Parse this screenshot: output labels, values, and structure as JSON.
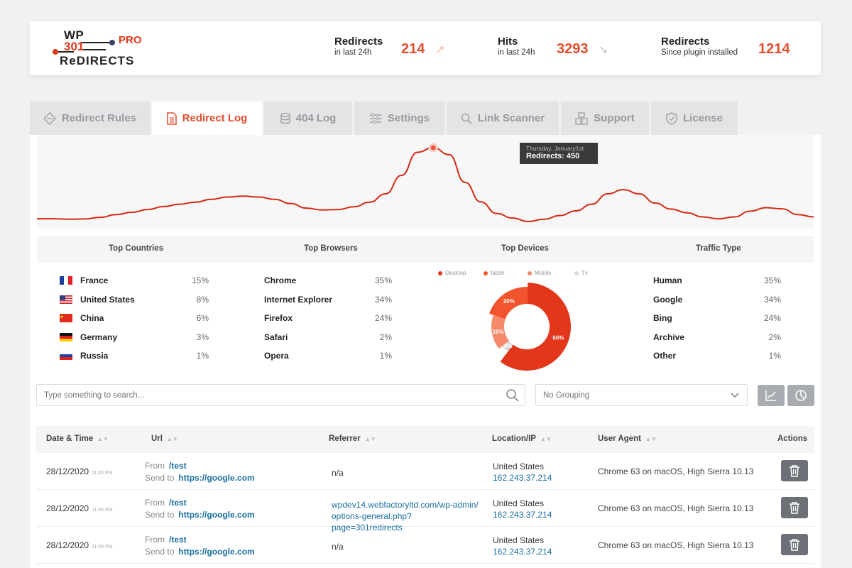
{
  "logo": {
    "wp": "WP",
    "n301": "301",
    "redirects": "ReDIRECTS",
    "pro": "PRO"
  },
  "stats": [
    {
      "label": "Redirects",
      "sub": "in last 24h",
      "value": "214",
      "trend": "up"
    },
    {
      "label": "Hits",
      "sub": "in last 24h",
      "value": "3293",
      "trend": "down"
    },
    {
      "label": "Redirects",
      "sub": "Since plugin installed",
      "value": "1214"
    }
  ],
  "tabs": [
    {
      "label": "Redirect Rules",
      "icon": "diamond-arrows-icon",
      "active": false
    },
    {
      "label": "Redirect Log",
      "icon": "document-icon",
      "active": true
    },
    {
      "label": "404 Log",
      "icon": "database-icon",
      "active": false
    },
    {
      "label": "Settings",
      "icon": "sliders-icon",
      "active": false
    },
    {
      "label": "Link Scanner",
      "icon": "search-icon",
      "active": false
    },
    {
      "label": "Support",
      "icon": "support-icon",
      "active": false
    },
    {
      "label": "License",
      "icon": "shield-icon",
      "active": false
    }
  ],
  "tooltip": {
    "date": "Thursday, January1st",
    "value": "Redirects: 450"
  },
  "chart_data": {
    "type": "area",
    "series": [
      {
        "values": [
          142,
          142,
          140,
          141,
          148,
          160,
          170,
          182,
          195,
          205,
          214,
          226,
          236,
          240,
          236,
          226,
          208,
          188,
          180,
          182,
          194,
          214,
          250,
          330,
          430,
          450,
          420,
          300,
          215,
          165,
          145,
          130,
          140,
          156,
          176,
          205,
          250,
          268,
          250,
          210,
          184,
          168,
          150,
          142,
          150,
          175,
          190,
          185,
          160,
          150
        ]
      }
    ],
    "highlight": {
      "label": "Thursday, January1st",
      "value": 450
    },
    "colors": {
      "line": "#d42a12",
      "fill": "#f7f7f8"
    }
  },
  "sections": {
    "countries": "Top Countries",
    "browsers": "Top Browsers",
    "devices": "Top Devices",
    "traffic": "Traffic Type"
  },
  "countries": [
    {
      "name": "France",
      "pct": "15%",
      "flag": "france-flag-icon"
    },
    {
      "name": "United States",
      "pct": "8%",
      "flag": "usa-flag-icon"
    },
    {
      "name": "China",
      "pct": "6%",
      "flag": "china-flag-icon"
    },
    {
      "name": "Germany",
      "pct": "3%",
      "flag": "germany-flag-icon"
    },
    {
      "name": "Russia",
      "pct": "1%",
      "flag": "russia-flag-icon"
    }
  ],
  "browsers": [
    {
      "name": "Chrome",
      "pct": "35%"
    },
    {
      "name": "Internet Explorer",
      "pct": "34%"
    },
    {
      "name": "Firefox",
      "pct": "24%"
    },
    {
      "name": "Safari",
      "pct": "2%"
    },
    {
      "name": "Opera",
      "pct": "1%"
    }
  ],
  "devices": {
    "legend": [
      {
        "label": "Desktop",
        "color": "#e2371a"
      },
      {
        "label": "tablet",
        "color": "#f2542d"
      },
      {
        "label": "Mobile",
        "color": "#f58a6c"
      },
      {
        "label": "Tv",
        "color": "#d9d9dc"
      }
    ],
    "slices": [
      {
        "label": "60%",
        "value": 60,
        "color": "#e2371a"
      },
      {
        "label": "4%",
        "value": 4,
        "color": "#d9d9dc"
      },
      {
        "label": "16%",
        "value": 16,
        "color": "#f58a6c"
      },
      {
        "label": "20%",
        "value": 20,
        "color": "#f2542d"
      }
    ]
  },
  "traffic": [
    {
      "name": "Human",
      "pct": "35%"
    },
    {
      "name": "Google",
      "pct": "34%"
    },
    {
      "name": "Bing",
      "pct": "24%"
    },
    {
      "name": "Archive",
      "pct": "2%"
    },
    {
      "name": "Other",
      "pct": "1%"
    }
  ],
  "search": {
    "placeholder": "Type something to search..."
  },
  "grouping": {
    "value": "No Grouping"
  },
  "table": {
    "headers": [
      "Date & Time",
      "Url",
      "Referrer",
      "Location/IP",
      "User Agent",
      "Actions"
    ],
    "rows": [
      {
        "date": "28/12/2020",
        "time": "11:45 PM",
        "from_label": "From",
        "from": "/test",
        "to_label": "Send to",
        "to": "https://google.com",
        "referrer": "n/a",
        "country": "United States",
        "ip": "162.243.37.214",
        "ua": "Chrome 63 on macOS, High Sierra 10.13"
      },
      {
        "date": "28/12/2020",
        "time": "11:45 PM",
        "from_label": "From",
        "from": "/test",
        "to_label": "Send to",
        "to": "https://google.com",
        "referrer": "wpdev14.webfactoryltd.com/wp-admin/ options-general.php?page=301redirects",
        "country": "United States",
        "ip": "162.243.37.214",
        "ua": "Chrome 63 on macOS, High Sierra 10.13"
      },
      {
        "date": "28/12/2020",
        "time": "11:45 PM",
        "from_label": "From",
        "from": "/test",
        "to_label": "Send to",
        "to": "https://google.com",
        "referrer": "n/a",
        "country": "United States",
        "ip": "162.243.37.214",
        "ua": "Chrome 63 on macOS, High Sierra 10.13"
      }
    ]
  }
}
